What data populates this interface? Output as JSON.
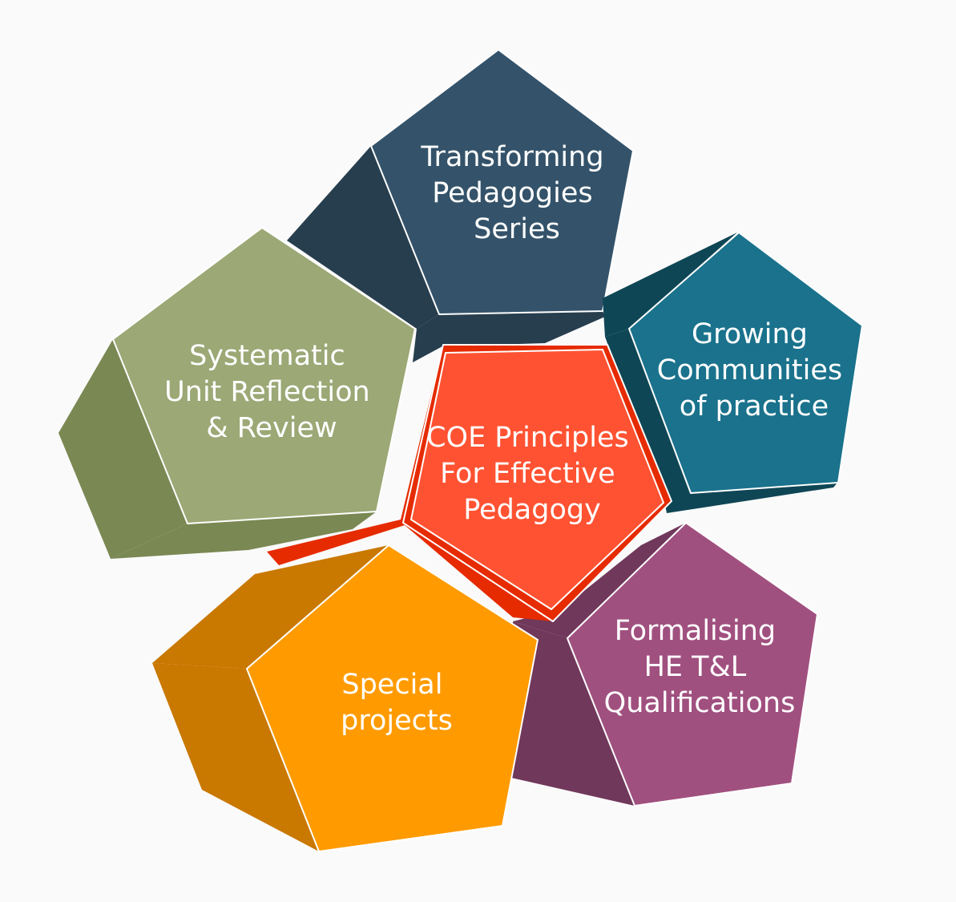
{
  "center": {
    "lines": [
      "COE Principles",
      "For Effective",
      "Pedagogy"
    ],
    "face_color": "#ff5232",
    "side_color": "#e62b00"
  },
  "petals": [
    {
      "id": "transforming",
      "lines": [
        "Transforming",
        "Pedagogies",
        "Series"
      ],
      "face_color": "#34536a",
      "side_color": "#273e4e"
    },
    {
      "id": "growing",
      "lines": [
        "Growing",
        "Communities",
        "of practice"
      ],
      "face_color": "#1a728c",
      "side_color": "#0f4655"
    },
    {
      "id": "formalising",
      "lines": [
        "Formalising",
        "HE T&L",
        "Qualifications"
      ],
      "face_color": "#a0507f",
      "side_color": "#70385b"
    },
    {
      "id": "special",
      "lines": [
        "Special",
        "projects"
      ],
      "face_color": "#ff9b00",
      "side_color": "#c97800"
    },
    {
      "id": "systematic",
      "lines": [
        "Systematic",
        "Unit Reflection",
        "& Review"
      ],
      "face_color": "#9ca875",
      "side_color": "#7a8853"
    }
  ]
}
